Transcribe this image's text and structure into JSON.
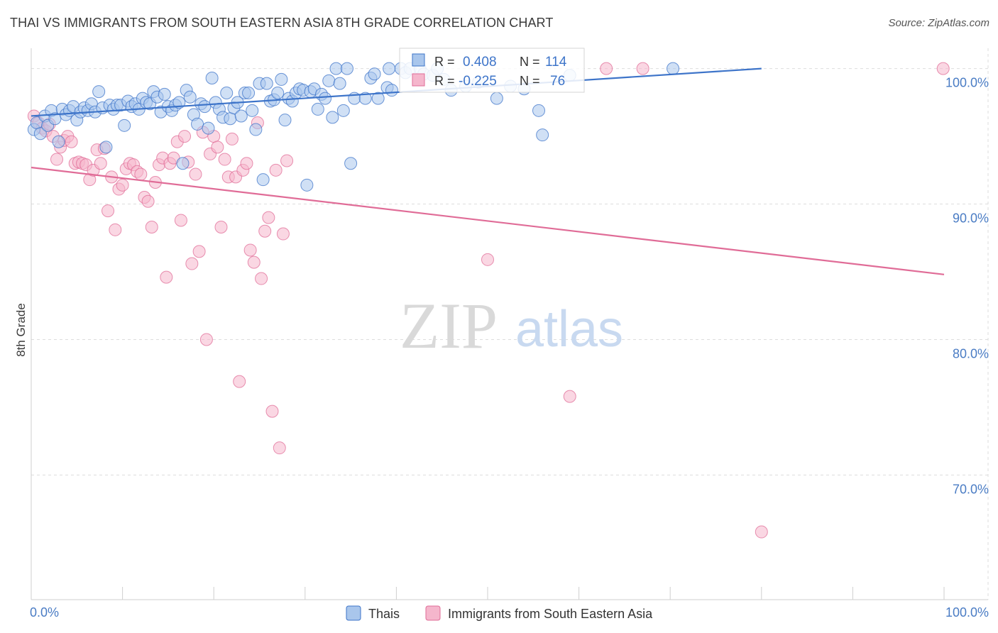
{
  "title": "THAI VS IMMIGRANTS FROM SOUTH EASTERN ASIA 8TH GRADE CORRELATION CHART",
  "source": "Source: ZipAtlas.com",
  "watermark": {
    "zip": "ZIP",
    "atlas": "atlas"
  },
  "colors": {
    "blue": "#3d74c9",
    "blue_fill": "#a9c6ec",
    "pink": "#e06c97",
    "pink_fill": "#f5b6cc",
    "grid": "#dddddd",
    "tick": "#4a7cc4"
  },
  "chart_data": {
    "type": "scatter",
    "ylabel": "8th Grade",
    "xlim": [
      0,
      100
    ],
    "ylim": [
      60.8,
      101.5
    ],
    "x_tick_labels": {
      "left": "0.0%",
      "right": "100.0%"
    },
    "y_ticks": [
      {
        "value": 100,
        "label": "100.0%"
      },
      {
        "value": 90,
        "label": "90.0%"
      },
      {
        "value": 80,
        "label": "80.0%"
      },
      {
        "value": 70,
        "label": "70.0%"
      }
    ],
    "grid": true,
    "legend_position": "bottom",
    "stats_box": [
      {
        "r_label": "R =",
        "r_value": "0.408",
        "n_label": "N =",
        "n_value": "114"
      },
      {
        "r_label": "R =",
        "r_value": "-0.225",
        "n_label": "N =",
        "n_value": "76"
      }
    ],
    "series": [
      {
        "name": "Thais",
        "color": "#3d74c9",
        "trend": {
          "x": [
            0,
            80
          ],
          "y": [
            96.5,
            100.0
          ]
        },
        "points": [
          [
            0.3,
            95.5
          ],
          [
            0.6,
            96.0
          ],
          [
            1.0,
            95.2
          ],
          [
            1.5,
            96.5
          ],
          [
            1.8,
            95.8
          ],
          [
            2.2,
            96.9
          ],
          [
            2.6,
            96.3
          ],
          [
            3.0,
            94.6
          ],
          [
            3.4,
            97.0
          ],
          [
            3.8,
            96.6
          ],
          [
            4.2,
            96.9
          ],
          [
            4.6,
            97.2
          ],
          [
            5.0,
            96.2
          ],
          [
            5.4,
            96.8
          ],
          [
            5.8,
            97.1
          ],
          [
            6.2,
            96.9
          ],
          [
            6.6,
            97.4
          ],
          [
            7.0,
            96.8
          ],
          [
            7.4,
            98.3
          ],
          [
            7.8,
            97.1
          ],
          [
            8.2,
            94.2
          ],
          [
            8.6,
            97.3
          ],
          [
            9.0,
            97.0
          ],
          [
            9.4,
            97.3
          ],
          [
            9.8,
            97.3
          ],
          [
            10.2,
            95.8
          ],
          [
            10.6,
            97.6
          ],
          [
            11.0,
            97.2
          ],
          [
            11.4,
            97.4
          ],
          [
            11.8,
            97.0
          ],
          [
            12.2,
            97.8
          ],
          [
            12.6,
            97.5
          ],
          [
            13.0,
            97.4
          ],
          [
            13.4,
            98.3
          ],
          [
            13.8,
            97.9
          ],
          [
            14.2,
            96.8
          ],
          [
            14.6,
            98.1
          ],
          [
            15.0,
            97.2
          ],
          [
            15.4,
            96.9
          ],
          [
            15.8,
            97.3
          ],
          [
            16.2,
            97.5
          ],
          [
            16.6,
            93.0
          ],
          [
            17.0,
            98.4
          ],
          [
            17.4,
            97.9
          ],
          [
            17.8,
            96.6
          ],
          [
            18.2,
            95.9
          ],
          [
            18.6,
            97.4
          ],
          [
            19.0,
            97.2
          ],
          [
            19.4,
            95.6
          ],
          [
            19.8,
            99.3
          ],
          [
            20.2,
            97.5
          ],
          [
            20.6,
            97.0
          ],
          [
            21.0,
            96.4
          ],
          [
            21.4,
            98.2
          ],
          [
            21.8,
            96.3
          ],
          [
            22.2,
            97.1
          ],
          [
            22.6,
            97.5
          ],
          [
            23.0,
            96.5
          ],
          [
            23.4,
            98.2
          ],
          [
            23.8,
            98.2
          ],
          [
            24.2,
            96.9
          ],
          [
            24.6,
            95.5
          ],
          [
            25.0,
            98.9
          ],
          [
            25.4,
            91.8
          ],
          [
            25.8,
            98.9
          ],
          [
            26.2,
            97.6
          ],
          [
            26.6,
            97.7
          ],
          [
            27.0,
            98.2
          ],
          [
            27.4,
            99.2
          ],
          [
            27.8,
            96.2
          ],
          [
            28.2,
            97.8
          ],
          [
            28.6,
            97.6
          ],
          [
            29.0,
            98.2
          ],
          [
            29.4,
            98.5
          ],
          [
            29.8,
            98.4
          ],
          [
            30.2,
            91.4
          ],
          [
            30.6,
            98.3
          ],
          [
            31.0,
            98.5
          ],
          [
            31.4,
            97.0
          ],
          [
            31.8,
            98.1
          ],
          [
            32.2,
            97.8
          ],
          [
            32.6,
            99.1
          ],
          [
            33.0,
            96.4
          ],
          [
            33.4,
            100.0
          ],
          [
            33.8,
            98.9
          ],
          [
            34.2,
            96.9
          ],
          [
            34.6,
            100.0
          ],
          [
            35.0,
            93.0
          ],
          [
            35.4,
            97.8
          ],
          [
            36.6,
            97.8
          ],
          [
            37.2,
            99.3
          ],
          [
            37.6,
            99.6
          ],
          [
            38.0,
            97.8
          ],
          [
            39.0,
            98.6
          ],
          [
            39.2,
            100.0
          ],
          [
            39.5,
            98.4
          ],
          [
            40.5,
            100.0
          ],
          [
            41.0,
            99.7
          ],
          [
            41.5,
            100.0
          ],
          [
            42.6,
            100.0
          ],
          [
            43.0,
            99.6
          ],
          [
            44.0,
            99.5
          ],
          [
            44.5,
            100.0
          ],
          [
            45.2,
            99.2
          ],
          [
            46.0,
            98.4
          ],
          [
            47.6,
            98.7
          ],
          [
            49.0,
            99.0
          ],
          [
            51.0,
            97.8
          ],
          [
            52.5,
            98.7
          ],
          [
            54.0,
            98.5
          ],
          [
            55.6,
            96.9
          ],
          [
            56.0,
            95.1
          ],
          [
            59.0,
            99.5
          ],
          [
            70.3,
            100.0
          ]
        ]
      },
      {
        "name": "Immigrants from South Eastern Asia",
        "color": "#e06c97",
        "trend": {
          "x": [
            0,
            100
          ],
          "y": [
            92.7,
            84.8
          ]
        },
        "points": [
          [
            0.3,
            96.5
          ],
          [
            0.8,
            96.0
          ],
          [
            1.2,
            95.6
          ],
          [
            1.6,
            95.4
          ],
          [
            2.0,
            95.9
          ],
          [
            2.4,
            95.0
          ],
          [
            2.8,
            93.3
          ],
          [
            3.2,
            94.2
          ],
          [
            3.6,
            94.7
          ],
          [
            4.0,
            95.0
          ],
          [
            4.4,
            94.6
          ],
          [
            4.8,
            93.0
          ],
          [
            5.2,
            93.1
          ],
          [
            5.6,
            93.0
          ],
          [
            6.0,
            92.9
          ],
          [
            6.4,
            91.8
          ],
          [
            6.8,
            92.5
          ],
          [
            7.2,
            94.0
          ],
          [
            7.6,
            93.0
          ],
          [
            8.0,
            94.1
          ],
          [
            8.4,
            89.5
          ],
          [
            8.8,
            92.0
          ],
          [
            9.2,
            88.1
          ],
          [
            9.6,
            91.1
          ],
          [
            10.0,
            91.4
          ],
          [
            10.4,
            92.6
          ],
          [
            10.8,
            93.0
          ],
          [
            11.2,
            92.9
          ],
          [
            11.6,
            92.4
          ],
          [
            12.0,
            92.2
          ],
          [
            12.4,
            90.5
          ],
          [
            12.8,
            90.2
          ],
          [
            13.2,
            88.3
          ],
          [
            13.6,
            91.6
          ],
          [
            14.0,
            92.9
          ],
          [
            14.4,
            93.4
          ],
          [
            14.8,
            84.6
          ],
          [
            15.2,
            93.0
          ],
          [
            15.6,
            93.4
          ],
          [
            16.0,
            94.6
          ],
          [
            16.4,
            88.8
          ],
          [
            16.8,
            95.0
          ],
          [
            17.2,
            93.1
          ],
          [
            17.6,
            85.6
          ],
          [
            18.0,
            92.2
          ],
          [
            18.4,
            86.5
          ],
          [
            18.8,
            95.3
          ],
          [
            19.2,
            80.0
          ],
          [
            19.6,
            93.7
          ],
          [
            20.0,
            95.0
          ],
          [
            20.4,
            94.2
          ],
          [
            20.8,
            88.3
          ],
          [
            21.2,
            93.3
          ],
          [
            21.6,
            92.0
          ],
          [
            22.0,
            94.8
          ],
          [
            22.4,
            92.0
          ],
          [
            22.8,
            76.9
          ],
          [
            23.2,
            92.5
          ],
          [
            23.6,
            93.0
          ],
          [
            24.0,
            86.6
          ],
          [
            24.4,
            85.7
          ],
          [
            24.8,
            96.0
          ],
          [
            25.2,
            84.5
          ],
          [
            25.6,
            88.0
          ],
          [
            26.0,
            89.0
          ],
          [
            26.4,
            74.7
          ],
          [
            26.8,
            92.5
          ],
          [
            27.2,
            72.0
          ],
          [
            27.6,
            87.8
          ],
          [
            28.0,
            93.2
          ],
          [
            50.0,
            85.9
          ],
          [
            59.0,
            75.8
          ],
          [
            63.0,
            100.0
          ],
          [
            67.0,
            100.0
          ],
          [
            80.0,
            65.8
          ],
          [
            99.9,
            100.0
          ]
        ]
      }
    ]
  }
}
